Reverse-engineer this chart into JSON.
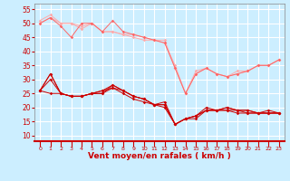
{
  "bg_color": "#cceeff",
  "grid_color": "#ffffff",
  "xlabel": "Vent moyen/en rafales ( km/h )",
  "xlabel_color": "#cc0000",
  "tick_color": "#cc0000",
  "x": [
    0,
    1,
    2,
    3,
    4,
    5,
    6,
    7,
    8,
    9,
    10,
    11,
    12,
    13,
    14,
    15,
    16,
    17,
    18,
    19,
    20,
    21,
    22,
    23
  ],
  "ylim": [
    8,
    57
  ],
  "yticks": [
    10,
    15,
    20,
    25,
    30,
    35,
    40,
    45,
    50,
    55
  ],
  "series": [
    {
      "color": "#ffaaaa",
      "y": [
        50,
        52,
        50,
        50,
        48,
        50,
        47,
        47,
        46,
        45,
        44,
        44,
        43,
        35,
        25,
        32,
        34,
        32,
        31,
        32,
        33,
        35,
        35,
        37
      ]
    },
    {
      "color": "#ffaaaa",
      "y": [
        51,
        53,
        50,
        50,
        49,
        50,
        47,
        47,
        46,
        46,
        45,
        44,
        44,
        34,
        25,
        33,
        34,
        32,
        31,
        33,
        33,
        35,
        35,
        37
      ]
    },
    {
      "color": "#ff6666",
      "y": [
        50,
        52,
        49,
        45,
        50,
        50,
        47,
        51,
        47,
        46,
        45,
        44,
        43,
        34,
        25,
        32,
        34,
        32,
        31,
        32,
        33,
        35,
        35,
        37
      ]
    },
    {
      "color": "#cc0000",
      "y": [
        26,
        32,
        25,
        24,
        24,
        25,
        25,
        27,
        26,
        24,
        23,
        21,
        21,
        14,
        16,
        17,
        19,
        19,
        20,
        19,
        18,
        18,
        19,
        18
      ]
    },
    {
      "color": "#cc0000",
      "y": [
        26,
        32,
        25,
        24,
        24,
        25,
        26,
        28,
        26,
        24,
        23,
        21,
        21,
        14,
        16,
        17,
        19,
        19,
        19,
        19,
        19,
        18,
        18,
        18
      ]
    },
    {
      "color": "#cc0000",
      "y": [
        26,
        30,
        25,
        24,
        24,
        25,
        25,
        28,
        26,
        24,
        23,
        21,
        22,
        14,
        16,
        17,
        20,
        19,
        20,
        19,
        19,
        18,
        18,
        18
      ]
    },
    {
      "color": "#cc0000",
      "y": [
        26,
        25,
        25,
        24,
        24,
        25,
        26,
        27,
        25,
        23,
        22,
        21,
        20,
        14,
        16,
        16,
        19,
        19,
        19,
        18,
        18,
        18,
        18,
        18
      ]
    }
  ]
}
